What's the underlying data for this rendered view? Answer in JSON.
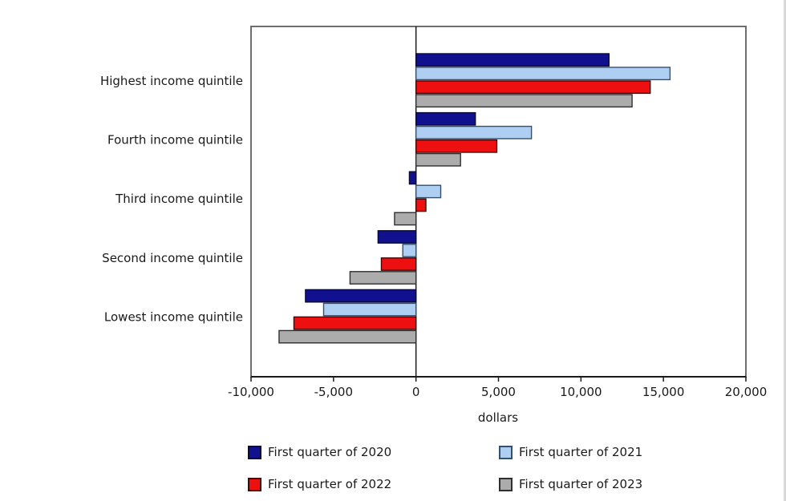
{
  "figure": {
    "background": "#ffffff",
    "border_color": "#6e6e6e",
    "axis_color": "#1a1a1a"
  },
  "chart_data": {
    "type": "bar",
    "orientation": "horizontal",
    "title": "",
    "xlabel": "dollars",
    "ylabel": "",
    "xlim": [
      -10000,
      20000
    ],
    "grid": false,
    "legend_position": "bottom-two-columns",
    "categories": [
      "Highest income quintile",
      "Fourth income quintile",
      "Third income quintile",
      "Second income quintile",
      "Lowest income quintile"
    ],
    "xticks": [
      -10000,
      -5000,
      0,
      5000,
      10000,
      15000,
      20000
    ],
    "xtick_labels": [
      "-10,000",
      "-5,000",
      "0",
      "5,000",
      "10,000",
      "15,000",
      "20,000"
    ],
    "series": [
      {
        "name": "First quarter of 2020",
        "color": "#11118F",
        "border": "#0a0a33",
        "values": [
          11700,
          3600,
          -400,
          -2300,
          -6700
        ]
      },
      {
        "name": "First quarter of 2021",
        "color": "#AECFF2",
        "border": "#36506e",
        "values": [
          15400,
          7000,
          1500,
          -800,
          -5600
        ]
      },
      {
        "name": "First quarter of 2022",
        "color": "#EE1010",
        "border": "#400808",
        "values": [
          14200,
          4900,
          600,
          -2100,
          -7400
        ]
      },
      {
        "name": "First quarter of 2023",
        "color": "#ACACAC",
        "border": "#2f2f2f",
        "values": [
          13100,
          2700,
          -1300,
          -4000,
          -8300
        ]
      }
    ]
  }
}
